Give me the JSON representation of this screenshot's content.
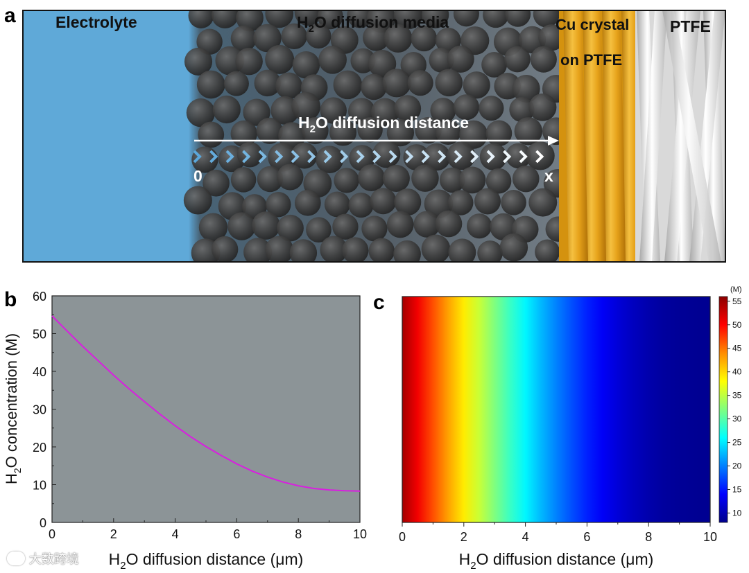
{
  "panels": {
    "a": "a",
    "b": "b",
    "c": "c"
  },
  "schematic": {
    "labels": {
      "electrolyte": "Electrolyte",
      "media_pre": "H",
      "media_sub": "2",
      "media_post": "O diffusion media",
      "cu_line1": "Cu crystal",
      "cu_line2": "on PTFE",
      "ptfe": "PTFE",
      "distance_pre": "H",
      "distance_sub": "2",
      "distance_post": "O diffusion distance",
      "origin": "0",
      "end": "x"
    },
    "colors": {
      "electrolyte": "#5fa9d8",
      "media": "#3f4b55",
      "sphere": "#4a4a4a",
      "cu": "#e6a21a",
      "ptfe": "#e8e8e8",
      "chevron_start": "#5ba7da",
      "chevron_end": "#ffffff"
    }
  },
  "chart_data": [
    {
      "id": "b",
      "type": "line",
      "title": "",
      "xlabel_pre": "H",
      "xlabel_sub": "2",
      "xlabel_post": "O diffusion distance (μm)",
      "ylabel_pre": "H",
      "ylabel_sub": "2",
      "ylabel_post": "O concentration (M)",
      "xlim": [
        0,
        10
      ],
      "ylim": [
        0,
        60
      ],
      "xticks": [
        0,
        2,
        4,
        6,
        8,
        10
      ],
      "yticks": [
        0,
        10,
        20,
        30,
        40,
        50,
        60
      ],
      "background": "#8c9497",
      "line_color": "#d91ee0",
      "series": [
        {
          "name": "H2O concentration",
          "x": [
            0,
            0.5,
            1,
            1.5,
            2,
            2.5,
            3,
            3.5,
            4,
            4.5,
            5,
            5.5,
            6,
            6.5,
            7,
            7.5,
            8,
            8.5,
            9,
            9.5,
            10
          ],
          "values": [
            54.7,
            50.6,
            46.6,
            42.8,
            39.0,
            35.4,
            32.0,
            28.7,
            25.6,
            22.7,
            20.1,
            17.7,
            15.5,
            13.6,
            12.0,
            10.7,
            9.7,
            9.0,
            8.6,
            8.4,
            8.3
          ]
        }
      ]
    },
    {
      "id": "c",
      "type": "heatmap",
      "xlabel_pre": "H",
      "xlabel_sub": "2",
      "xlabel_post": "O diffusion distance (μm)",
      "xlim": [
        0,
        10
      ],
      "xticks": [
        0,
        2,
        4,
        6,
        8,
        10
      ],
      "colorbar": {
        "unit": "(M)",
        "range": [
          8,
          56
        ],
        "ticks": [
          10,
          15,
          20,
          25,
          30,
          35,
          40,
          45,
          50,
          55
        ],
        "colormap": [
          "#8b0000",
          "#ff0000",
          "#ff8c00",
          "#ffff00",
          "#7fff7f",
          "#00ffff",
          "#0080ff",
          "#0000ff",
          "#00008b"
        ]
      }
    }
  ],
  "watermark": "大数跨境"
}
